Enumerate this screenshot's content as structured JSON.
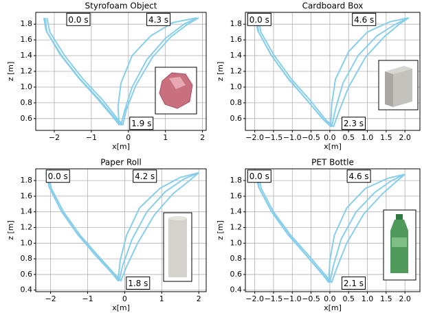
{
  "chart_data": [
    {
      "type": "line",
      "title": "Styrofoam Object",
      "x_label": "x[m]",
      "y_label": "z [m]",
      "xlim": [
        -2.5,
        2.1
      ],
      "ylim": [
        0.45,
        1.95
      ],
      "xticks": [
        {
          "value": -2,
          "label": "−2"
        },
        {
          "value": -1,
          "label": "−1"
        },
        0,
        1,
        2
      ],
      "yticks": [
        0.6,
        0.8,
        {
          "value": 1,
          "label": "1.0"
        },
        1.2,
        1.4,
        1.6,
        1.8
      ],
      "grid": true,
      "annotations": [
        "0.0 s",
        "4.3 s",
        "1.9 s"
      ],
      "series": [
        {
          "color": "#87ceeb",
          "x": [
            -2.25,
            -2.2,
            -1.8,
            -1.3,
            -0.8,
            -0.35,
            -0.2,
            -0.1,
            0.1,
            0.5,
            1.0,
            1.5,
            1.85
          ],
          "values": [
            1.88,
            1.7,
            1.4,
            1.1,
            0.85,
            0.6,
            0.52,
            0.7,
            1.0,
            1.35,
            1.62,
            1.8,
            1.88
          ]
        },
        {
          "color": "#87ceeb",
          "x": [
            -2.2,
            -2.12,
            -1.72,
            -1.22,
            -0.72,
            -0.3,
            -0.15,
            -0.05,
            0.2,
            0.65,
            1.15,
            1.6,
            1.9
          ],
          "values": [
            1.88,
            1.7,
            1.4,
            1.1,
            0.85,
            0.6,
            0.52,
            0.72,
            1.02,
            1.38,
            1.64,
            1.8,
            1.88
          ]
        },
        {
          "color": "#87ceeb",
          "x": [
            -2.28,
            -2.22,
            -1.85,
            -1.35,
            -0.85,
            -0.4,
            -0.25,
            -0.28,
            -0.2,
            0.1,
            0.6,
            1.2,
            1.85
          ],
          "values": [
            1.88,
            1.72,
            1.42,
            1.12,
            0.86,
            0.61,
            0.52,
            0.75,
            1.05,
            1.4,
            1.65,
            1.82,
            1.88
          ]
        }
      ]
    },
    {
      "type": "line",
      "title": "Cardboard Box",
      "x_label": "x[m]",
      "y_label": "z [m]",
      "xlim": [
        -2.25,
        2.4
      ],
      "ylim": [
        0.45,
        1.95
      ],
      "xticks": [
        {
          "value": -2,
          "label": "−2.0"
        },
        {
          "value": -1.5,
          "label": "−1.5"
        },
        {
          "value": -1,
          "label": "−1.0"
        },
        {
          "value": -0.5,
          "label": "−0.5"
        },
        {
          "value": 0,
          "label": "0.0"
        },
        0.5,
        {
          "value": 1,
          "label": "1.0"
        },
        1.5,
        {
          "value": 2,
          "label": "2.0"
        }
      ],
      "yticks": [
        0.6,
        0.8,
        {
          "value": 1,
          "label": "1.0"
        },
        1.2,
        1.4,
        1.6,
        1.8
      ],
      "grid": true,
      "annotations": [
        "0.0 s",
        "4.6 s",
        "2.3 s"
      ],
      "series": [
        {
          "color": "#87ceeb",
          "x": [
            -1.95,
            -1.9,
            -1.55,
            -1.1,
            -0.6,
            -0.15,
            0.05,
            0.15,
            0.35,
            0.75,
            1.25,
            1.75,
            2.1
          ],
          "values": [
            1.88,
            1.7,
            1.4,
            1.1,
            0.83,
            0.58,
            0.5,
            0.72,
            1.05,
            1.4,
            1.65,
            1.8,
            1.88
          ]
        },
        {
          "color": "#87ceeb",
          "x": [
            -1.9,
            -1.84,
            -1.48,
            -1.02,
            -0.52,
            -0.1,
            0.1,
            0.25,
            0.5,
            0.95,
            1.45,
            1.85,
            2.1
          ],
          "values": [
            1.88,
            1.7,
            1.4,
            1.1,
            0.83,
            0.58,
            0.5,
            0.7,
            1.0,
            1.38,
            1.64,
            1.8,
            1.88
          ]
        },
        {
          "color": "#87ceeb",
          "x": [
            -1.98,
            -1.92,
            -1.58,
            -1.12,
            -0.62,
            -0.18,
            0.02,
            0.05,
            0.15,
            0.5,
            1.0,
            1.6,
            2.1
          ],
          "values": [
            1.88,
            1.72,
            1.42,
            1.12,
            0.84,
            0.59,
            0.5,
            0.78,
            1.1,
            1.45,
            1.7,
            1.83,
            1.88
          ]
        }
      ]
    },
    {
      "type": "line",
      "title": "Paper Roll",
      "x_label": "x[m]",
      "y_label": "z [m]",
      "xlim": [
        -2.4,
        2.2
      ],
      "ylim": [
        0.38,
        1.95
      ],
      "xticks": [
        {
          "value": -2,
          "label": "−2"
        },
        {
          "value": -1,
          "label": "−1"
        },
        0,
        1,
        2
      ],
      "yticks": [
        0.4,
        0.6,
        0.8,
        {
          "value": 1,
          "label": "1.0"
        },
        1.2,
        1.4,
        1.6,
        1.8
      ],
      "grid": true,
      "annotations": [
        "0.0 s",
        "4.2 s",
        "1.8 s"
      ],
      "series": [
        {
          "color": "#87ceeb",
          "x": [
            -2.1,
            -2.02,
            -1.7,
            -1.25,
            -0.75,
            -0.3,
            -0.15,
            -0.05,
            0.2,
            0.6,
            1.1,
            1.6,
            2.0
          ],
          "values": [
            1.9,
            1.7,
            1.4,
            1.1,
            0.83,
            0.6,
            0.52,
            0.72,
            1.05,
            1.4,
            1.66,
            1.82,
            1.9
          ]
        },
        {
          "color": "#87ceeb",
          "x": [
            -2.06,
            -1.98,
            -1.65,
            -1.2,
            -0.7,
            -0.26,
            -0.1,
            0.05,
            0.35,
            0.8,
            1.3,
            1.75,
            2.0
          ],
          "values": [
            1.9,
            1.7,
            1.4,
            1.1,
            0.83,
            0.6,
            0.52,
            0.7,
            1.0,
            1.36,
            1.63,
            1.8,
            1.9
          ]
        },
        {
          "color": "#87ceeb",
          "x": [
            -2.12,
            -2.04,
            -1.72,
            -1.28,
            -0.78,
            -0.33,
            -0.18,
            -0.12,
            0.05,
            0.4,
            0.95,
            1.5,
            2.0
          ],
          "values": [
            1.9,
            1.72,
            1.42,
            1.12,
            0.84,
            0.61,
            0.52,
            0.78,
            1.1,
            1.45,
            1.7,
            1.84,
            1.9
          ]
        }
      ]
    },
    {
      "type": "line",
      "title": "PET Bottle",
      "x_label": "x[m]",
      "y_label": "z [m]",
      "xlim": [
        -2.25,
        2.4
      ],
      "ylim": [
        0.38,
        1.95
      ],
      "xticks": [
        {
          "value": -2,
          "label": "−2.0"
        },
        {
          "value": -1.5,
          "label": "−1.5"
        },
        {
          "value": -1,
          "label": "−1.0"
        },
        {
          "value": -0.5,
          "label": "−0.5"
        },
        {
          "value": 0,
          "label": "0.0"
        },
        0.5,
        {
          "value": 1,
          "label": "1.0"
        },
        1.5,
        {
          "value": 2,
          "label": "2.0"
        }
      ],
      "yticks": [
        0.4,
        0.6,
        0.8,
        {
          "value": 1,
          "label": "1.0"
        },
        1.2,
        1.4,
        1.6,
        1.8
      ],
      "grid": true,
      "annotations": [
        "0.0 s",
        "4.6 s",
        "2.1 s"
      ],
      "series": [
        {
          "color": "#87ceeb",
          "x": [
            -1.95,
            -1.88,
            -1.55,
            -1.1,
            -0.6,
            -0.15,
            0.0,
            0.1,
            0.3,
            0.7,
            1.2,
            1.65,
            2.0
          ],
          "values": [
            1.88,
            1.7,
            1.4,
            1.1,
            0.83,
            0.58,
            0.5,
            0.72,
            1.05,
            1.4,
            1.65,
            1.8,
            1.88
          ]
        },
        {
          "color": "#87ceeb",
          "x": [
            -1.9,
            -1.83,
            -1.5,
            -1.04,
            -0.54,
            -0.1,
            0.05,
            0.2,
            0.45,
            0.9,
            1.4,
            1.8,
            2.0
          ],
          "values": [
            1.88,
            1.7,
            1.4,
            1.1,
            0.83,
            0.58,
            0.5,
            0.7,
            1.0,
            1.37,
            1.63,
            1.8,
            1.88
          ]
        },
        {
          "color": "#87ceeb",
          "x": [
            -1.97,
            -1.9,
            -1.57,
            -1.12,
            -0.62,
            -0.18,
            -0.03,
            0.0,
            0.12,
            0.45,
            0.95,
            1.55,
            2.0
          ],
          "values": [
            1.88,
            1.72,
            1.42,
            1.12,
            0.84,
            0.59,
            0.5,
            0.78,
            1.1,
            1.45,
            1.7,
            1.83,
            1.88
          ]
        }
      ]
    }
  ]
}
